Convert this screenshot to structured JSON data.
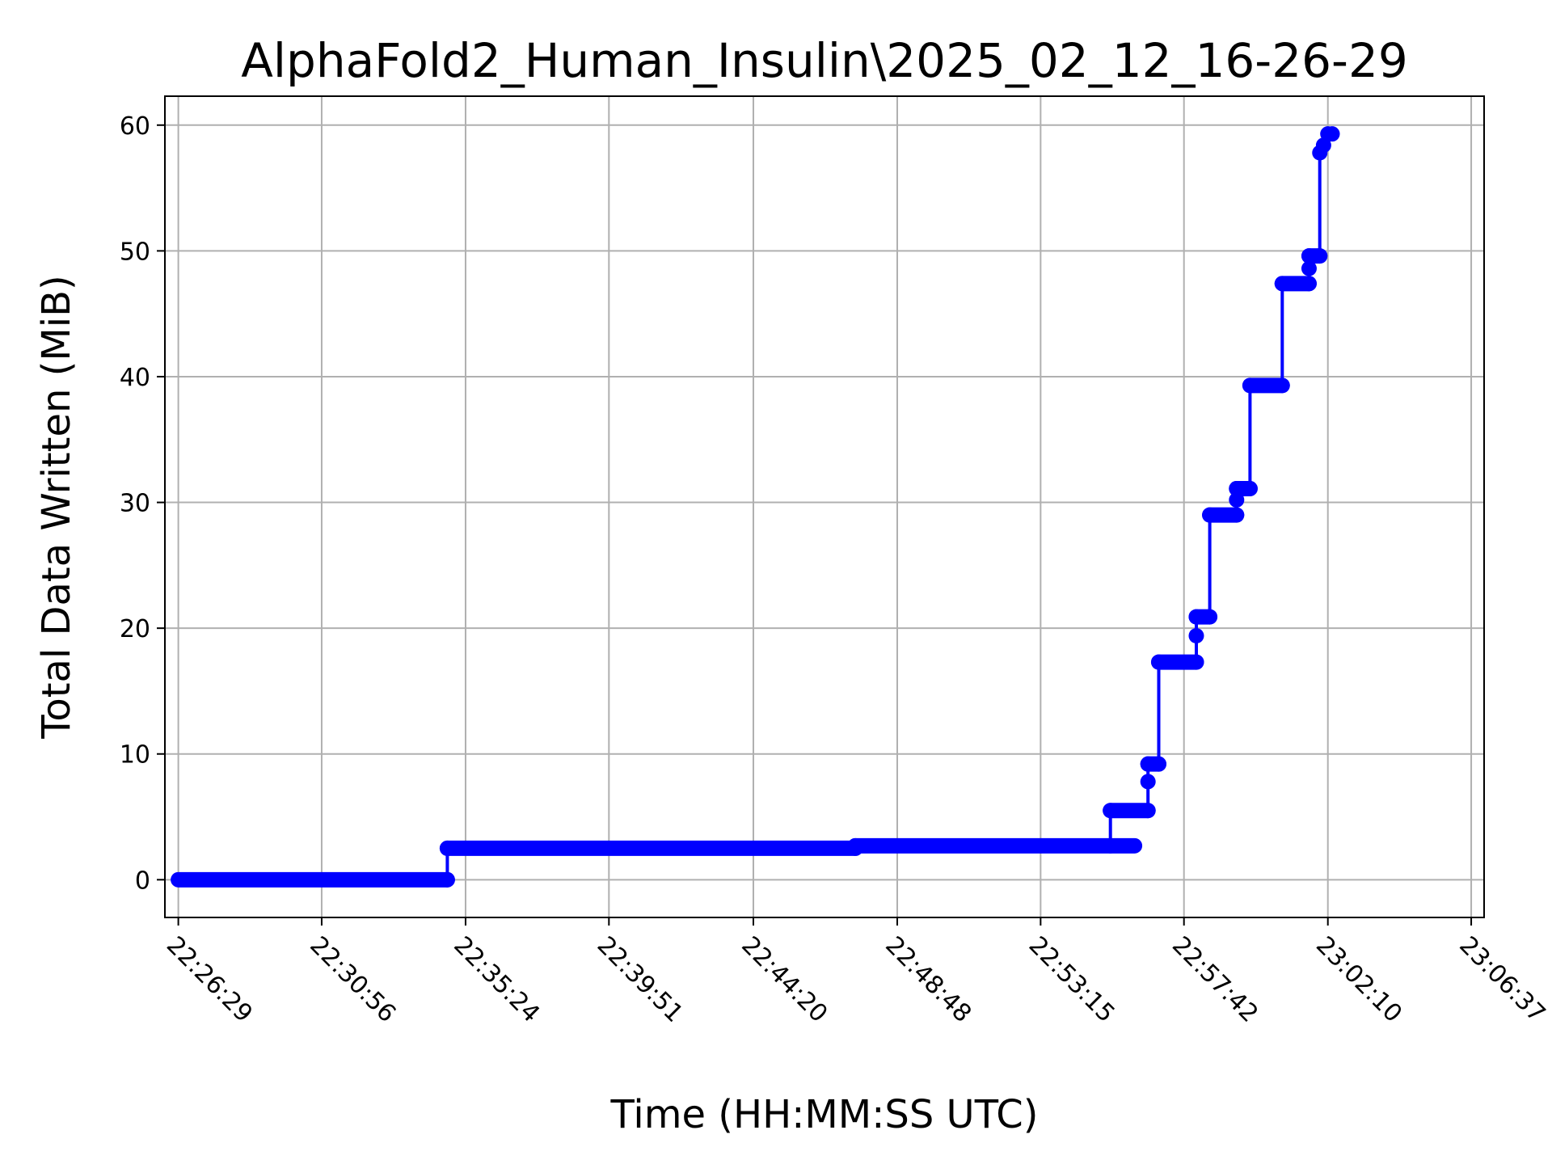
{
  "chart_data": {
    "type": "line",
    "title": "AlphaFold2_Human_Insulin\\2025_02_12_16-26-29",
    "xlabel": "Time (HH:MM:SS UTC)",
    "ylabel": "Total Data Written (MiB)",
    "x_tick_labels": [
      "22:26:29",
      "22:30:56",
      "22:35:24",
      "22:39:51",
      "22:44:20",
      "22:48:48",
      "22:53:15",
      "22:57:42",
      "23:02:10",
      "23:06:37"
    ],
    "x_ticks": [
      "22:26:29",
      "22:30:56",
      "22:35:24",
      "22:39:51",
      "22:44:20",
      "22:48:48",
      "22:53:15",
      "22:57:42",
      "23:02:10",
      "23:06:37"
    ],
    "xlim": [
      "22:26:04",
      "23:07:01"
    ],
    "y_ticks": [
      0,
      10,
      20,
      30,
      40,
      50,
      60
    ],
    "ylim": [
      -3,
      62.3
    ],
    "grid": true,
    "line_color": "#0000ff",
    "step": true,
    "series": [
      {
        "marker_segments": [
          {
            "y": 0,
            "x_start": "22:26:29",
            "x_end": "22:34:50"
          },
          {
            "y": 2.5,
            "x_start": "22:34:50",
            "x_end": "22:47:30"
          },
          {
            "y": 2.7,
            "x_start": "22:47:30",
            "x_end": "22:56:10"
          },
          {
            "y": 5.5,
            "x_start": "22:55:25",
            "x_end": "22:56:35"
          },
          {
            "y": 9.2,
            "x_start": "22:56:35",
            "x_end": "22:56:55"
          },
          {
            "y": 17.3,
            "x_start": "22:56:55",
            "x_end": "22:58:05"
          },
          {
            "y": 20.9,
            "x_start": "22:58:05",
            "x_end": "22:58:30"
          },
          {
            "y": 29.0,
            "x_start": "22:58:30",
            "x_end": "22:59:20"
          },
          {
            "y": 31.1,
            "x_start": "22:59:20",
            "x_end": "22:59:45"
          },
          {
            "y": 39.3,
            "x_start": "22:59:45",
            "x_end": "23:00:45"
          },
          {
            "y": 47.4,
            "x_start": "23:00:45",
            "x_end": "23:01:35"
          },
          {
            "y": 49.6,
            "x_start": "23:01:35",
            "x_end": "23:01:55"
          }
        ],
        "points": [
          {
            "x": "22:34:50",
            "y": 0
          },
          {
            "x": "22:34:50",
            "y": 2.5
          },
          {
            "x": "22:47:30",
            "y": 2.5
          },
          {
            "x": "22:47:30",
            "y": 2.7
          },
          {
            "x": "22:55:25",
            "y": 2.7
          },
          {
            "x": "22:55:25",
            "y": 5.5
          },
          {
            "x": "22:56:35",
            "y": 5.5
          },
          {
            "x": "22:56:35",
            "y": 7.8
          },
          {
            "x": "22:56:35",
            "y": 9.2
          },
          {
            "x": "22:56:55",
            "y": 9.2
          },
          {
            "x": "22:56:55",
            "y": 17.3
          },
          {
            "x": "22:58:05",
            "y": 17.3
          },
          {
            "x": "22:58:05",
            "y": 19.4
          },
          {
            "x": "22:58:05",
            "y": 20.9
          },
          {
            "x": "22:58:30",
            "y": 20.9
          },
          {
            "x": "22:58:30",
            "y": 29.0
          },
          {
            "x": "22:59:20",
            "y": 29.0
          },
          {
            "x": "22:59:20",
            "y": 30.2
          },
          {
            "x": "22:59:20",
            "y": 31.1
          },
          {
            "x": "22:59:45",
            "y": 31.1
          },
          {
            "x": "22:59:45",
            "y": 39.3
          },
          {
            "x": "23:00:45",
            "y": 39.3
          },
          {
            "x": "23:00:45",
            "y": 47.4
          },
          {
            "x": "23:01:35",
            "y": 47.4
          },
          {
            "x": "23:01:35",
            "y": 48.6
          },
          {
            "x": "23:01:35",
            "y": 49.6
          },
          {
            "x": "23:01:55",
            "y": 49.6
          },
          {
            "x": "23:01:55",
            "y": 57.8
          },
          {
            "x": "23:02:02",
            "y": 58.4
          },
          {
            "x": "23:02:10",
            "y": 59.3
          },
          {
            "x": "23:02:18",
            "y": 59.3
          }
        ]
      }
    ]
  }
}
